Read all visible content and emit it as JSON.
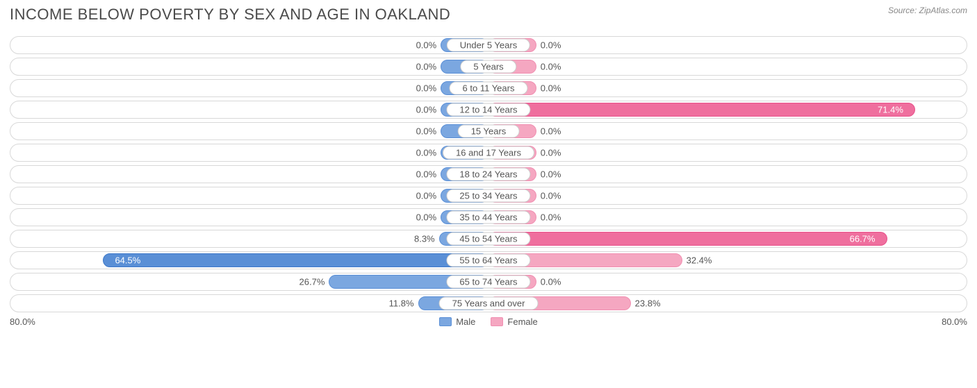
{
  "title": "INCOME BELOW POVERTY BY SEX AND AGE IN OAKLAND",
  "source": "Source: ZipAtlas.com",
  "axis_max_label": "80.0%",
  "axis_max": 80.0,
  "min_bar_pct": 10.0,
  "colors": {
    "male_fill": "#7ba7e0",
    "male_border": "#5a8fd6",
    "male_dark_fill": "#5a8fd6",
    "male_dark_border": "#3d78c9",
    "female_fill": "#f5a7c1",
    "female_border": "#f08fb1",
    "female_dark_fill": "#ef6f9e",
    "female_dark_border": "#e8518a",
    "row_border": "#d8d8d8",
    "text": "#555555",
    "background": "#ffffff"
  },
  "legend": {
    "male": "Male",
    "female": "Female"
  },
  "rows": [
    {
      "label": "Under 5 Years",
      "male": 0.0,
      "female": 0.0
    },
    {
      "label": "5 Years",
      "male": 0.0,
      "female": 0.0
    },
    {
      "label": "6 to 11 Years",
      "male": 0.0,
      "female": 0.0
    },
    {
      "label": "12 to 14 Years",
      "male": 0.0,
      "female": 71.4
    },
    {
      "label": "15 Years",
      "male": 0.0,
      "female": 0.0
    },
    {
      "label": "16 and 17 Years",
      "male": 0.0,
      "female": 0.0
    },
    {
      "label": "18 to 24 Years",
      "male": 0.0,
      "female": 0.0
    },
    {
      "label": "25 to 34 Years",
      "male": 0.0,
      "female": 0.0
    },
    {
      "label": "35 to 44 Years",
      "male": 0.0,
      "female": 0.0
    },
    {
      "label": "45 to 54 Years",
      "male": 8.3,
      "female": 66.7
    },
    {
      "label": "55 to 64 Years",
      "male": 64.5,
      "female": 32.4
    },
    {
      "label": "65 to 74 Years",
      "male": 26.7,
      "female": 0.0
    },
    {
      "label": "75 Years and over",
      "male": 11.8,
      "female": 23.8
    }
  ]
}
